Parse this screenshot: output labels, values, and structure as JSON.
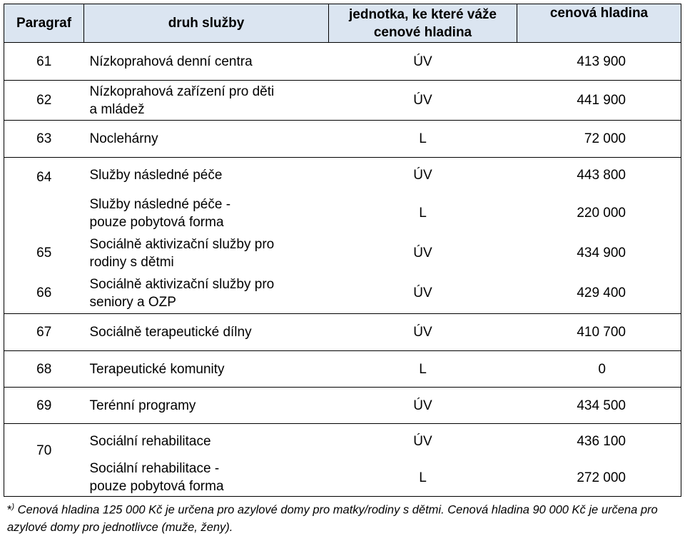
{
  "headers": {
    "paragraf": "Paragraf",
    "druh": "druh služby",
    "jednotka_line1": "jednotka, ke které váže",
    "jednotka_line2": "cenové hladina",
    "cenova": "cenová hladina"
  },
  "rows": [
    {
      "par": "61",
      "name": "Nízkoprahová denní centra",
      "unit": "ÚV",
      "value": "413 900"
    },
    {
      "par": "62",
      "name_line1": "Nízkoprahová zařízení pro děti",
      "name_line2": "a mládež",
      "unit": "ÚV",
      "value": "441 900"
    },
    {
      "par": "63",
      "name": "Noclehárny",
      "unit": "L",
      "value": "72 000"
    },
    {
      "par": "64",
      "name": "Služby následné péče",
      "unit": "ÚV",
      "value": "443 800",
      "sub_name_line1": "Služby následné péče -",
      "sub_name_line2": "pouze pobytová forma",
      "sub_unit": "L",
      "sub_value": "220 000"
    },
    {
      "par": "65",
      "name_line1": "Sociálně aktivizační služby pro",
      "name_line2": "rodiny s dětmi",
      "unit": "ÚV",
      "value": "434 900"
    },
    {
      "par": "66",
      "name_line1": "Sociálně aktivizační služby pro",
      "name_line2": "seniory a OZP",
      "unit": "ÚV",
      "value": "429 400"
    },
    {
      "par": "67",
      "name": "Sociálně terapeutické dílny",
      "unit": "ÚV",
      "value": "410 700"
    },
    {
      "par": "68",
      "name": "Terapeutické komunity",
      "unit": "L",
      "value": "0"
    },
    {
      "par": "69",
      "name": "Terénní programy",
      "unit": "ÚV",
      "value": "434 500"
    },
    {
      "par": "70",
      "name": "Sociální rehabilitace",
      "unit": "ÚV",
      "value": "436 100",
      "sub_name_line1": "Sociální rehabilitace -",
      "sub_name_line2": "pouze pobytová forma",
      "sub_unit": "L",
      "sub_value": "272 000"
    }
  ],
  "footnote": {
    "mark": "*",
    "sup": ")",
    "text": " Cenová hladina 125 000 Kč je určena pro azylové domy pro matky/rodiny s dětmi. Cenová hladina 90 000 Kč je určena pro azylové domy pro jednotlivce (muže, ženy)."
  }
}
